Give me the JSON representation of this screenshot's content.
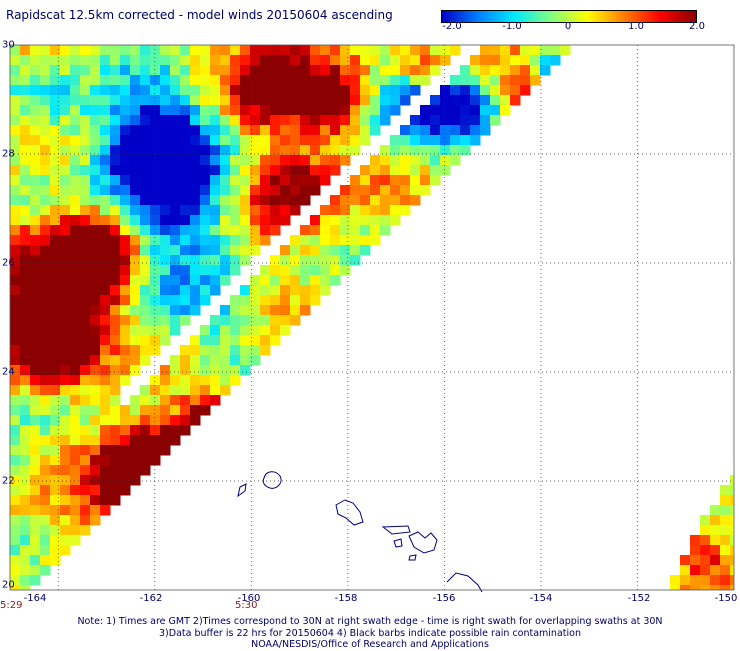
{
  "title": "Rapidscat 12.5km corrected - model winds 20150604 ascending",
  "colorbar": {
    "labels": [
      "-2.0",
      "-1.0",
      "0",
      "1.0",
      "2.0"
    ],
    "stops": [
      "#0000c8",
      "#0080ff",
      "#00e8ff",
      "#80ff80",
      "#ffff00",
      "#ff8000",
      "#ff0000",
      "#8b0000"
    ],
    "min": -2.0,
    "max": 2.0
  },
  "map": {
    "lon_range": [
      -165,
      -150
    ],
    "lat_range": [
      20,
      30
    ],
    "lat_labels": [
      "30",
      "28",
      "26",
      "24",
      "22",
      "20"
    ],
    "lon_labels": [
      "-164",
      "-162",
      "-160",
      "-158",
      "-156",
      "-154",
      "-152",
      "-150"
    ],
    "grid": true,
    "coastline_color": "#000080"
  },
  "time_labels": [
    "5:29",
    "5:30"
  ],
  "notes": [
    "Note: 1) Times are GMT 2)Times correspond to 30N at right swath edge - time is right swath for overlapping swaths at 30N",
    "3)Data buffer is 22 hrs for 20150604 4) Black barbs indicate possible rain contamination",
    "NOAA/NESDIS/Office of Research and Applications"
  ]
}
